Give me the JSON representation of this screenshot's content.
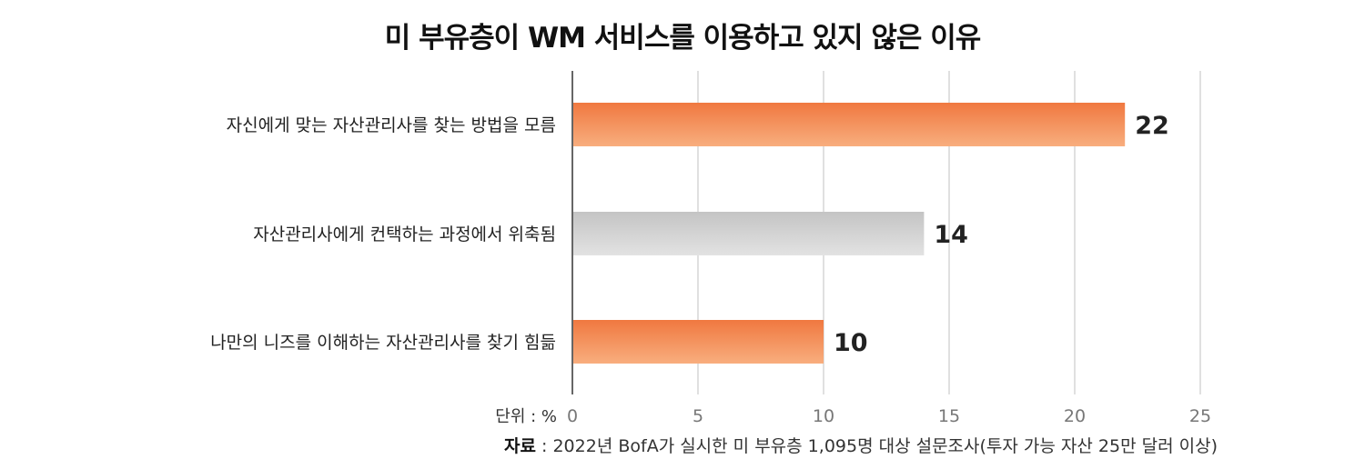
{
  "chart_data": {
    "type": "bar",
    "orientation": "horizontal",
    "title": "미 부유층이 WM 서비스를 이용하고 있지 않은 이유",
    "categories": [
      "자신에게 맞는 자산관리사를 찾는 방법을 모름",
      "자산관리사에게 컨택하는 과정에서 위축됨",
      "나만의 니즈를 이해하는 자산관리사를 찾기 힘듦"
    ],
    "values": [
      22,
      14,
      10
    ],
    "bar_colors": [
      "#F07840",
      "#C4C4C4",
      "#F07840"
    ],
    "xlim": [
      0,
      25
    ],
    "xticks": [
      0,
      5,
      10,
      15,
      20,
      25
    ],
    "unit_label": "단위 : %",
    "grid": true
  },
  "colors": {
    "accent": "#F07840",
    "accent_light": "#F8AE7E",
    "neutral": "#C4C4C4",
    "neutral_light": "#E2E2E2",
    "grid": "#CCCCCC",
    "axis": "#666666"
  },
  "source": {
    "label": "자료",
    "separator": " : ",
    "text": "2022년 BofA가 실시한 미 부유층 1,095명 대상 설문조사(투자 가능 자산 25만 달러 이상)"
  }
}
